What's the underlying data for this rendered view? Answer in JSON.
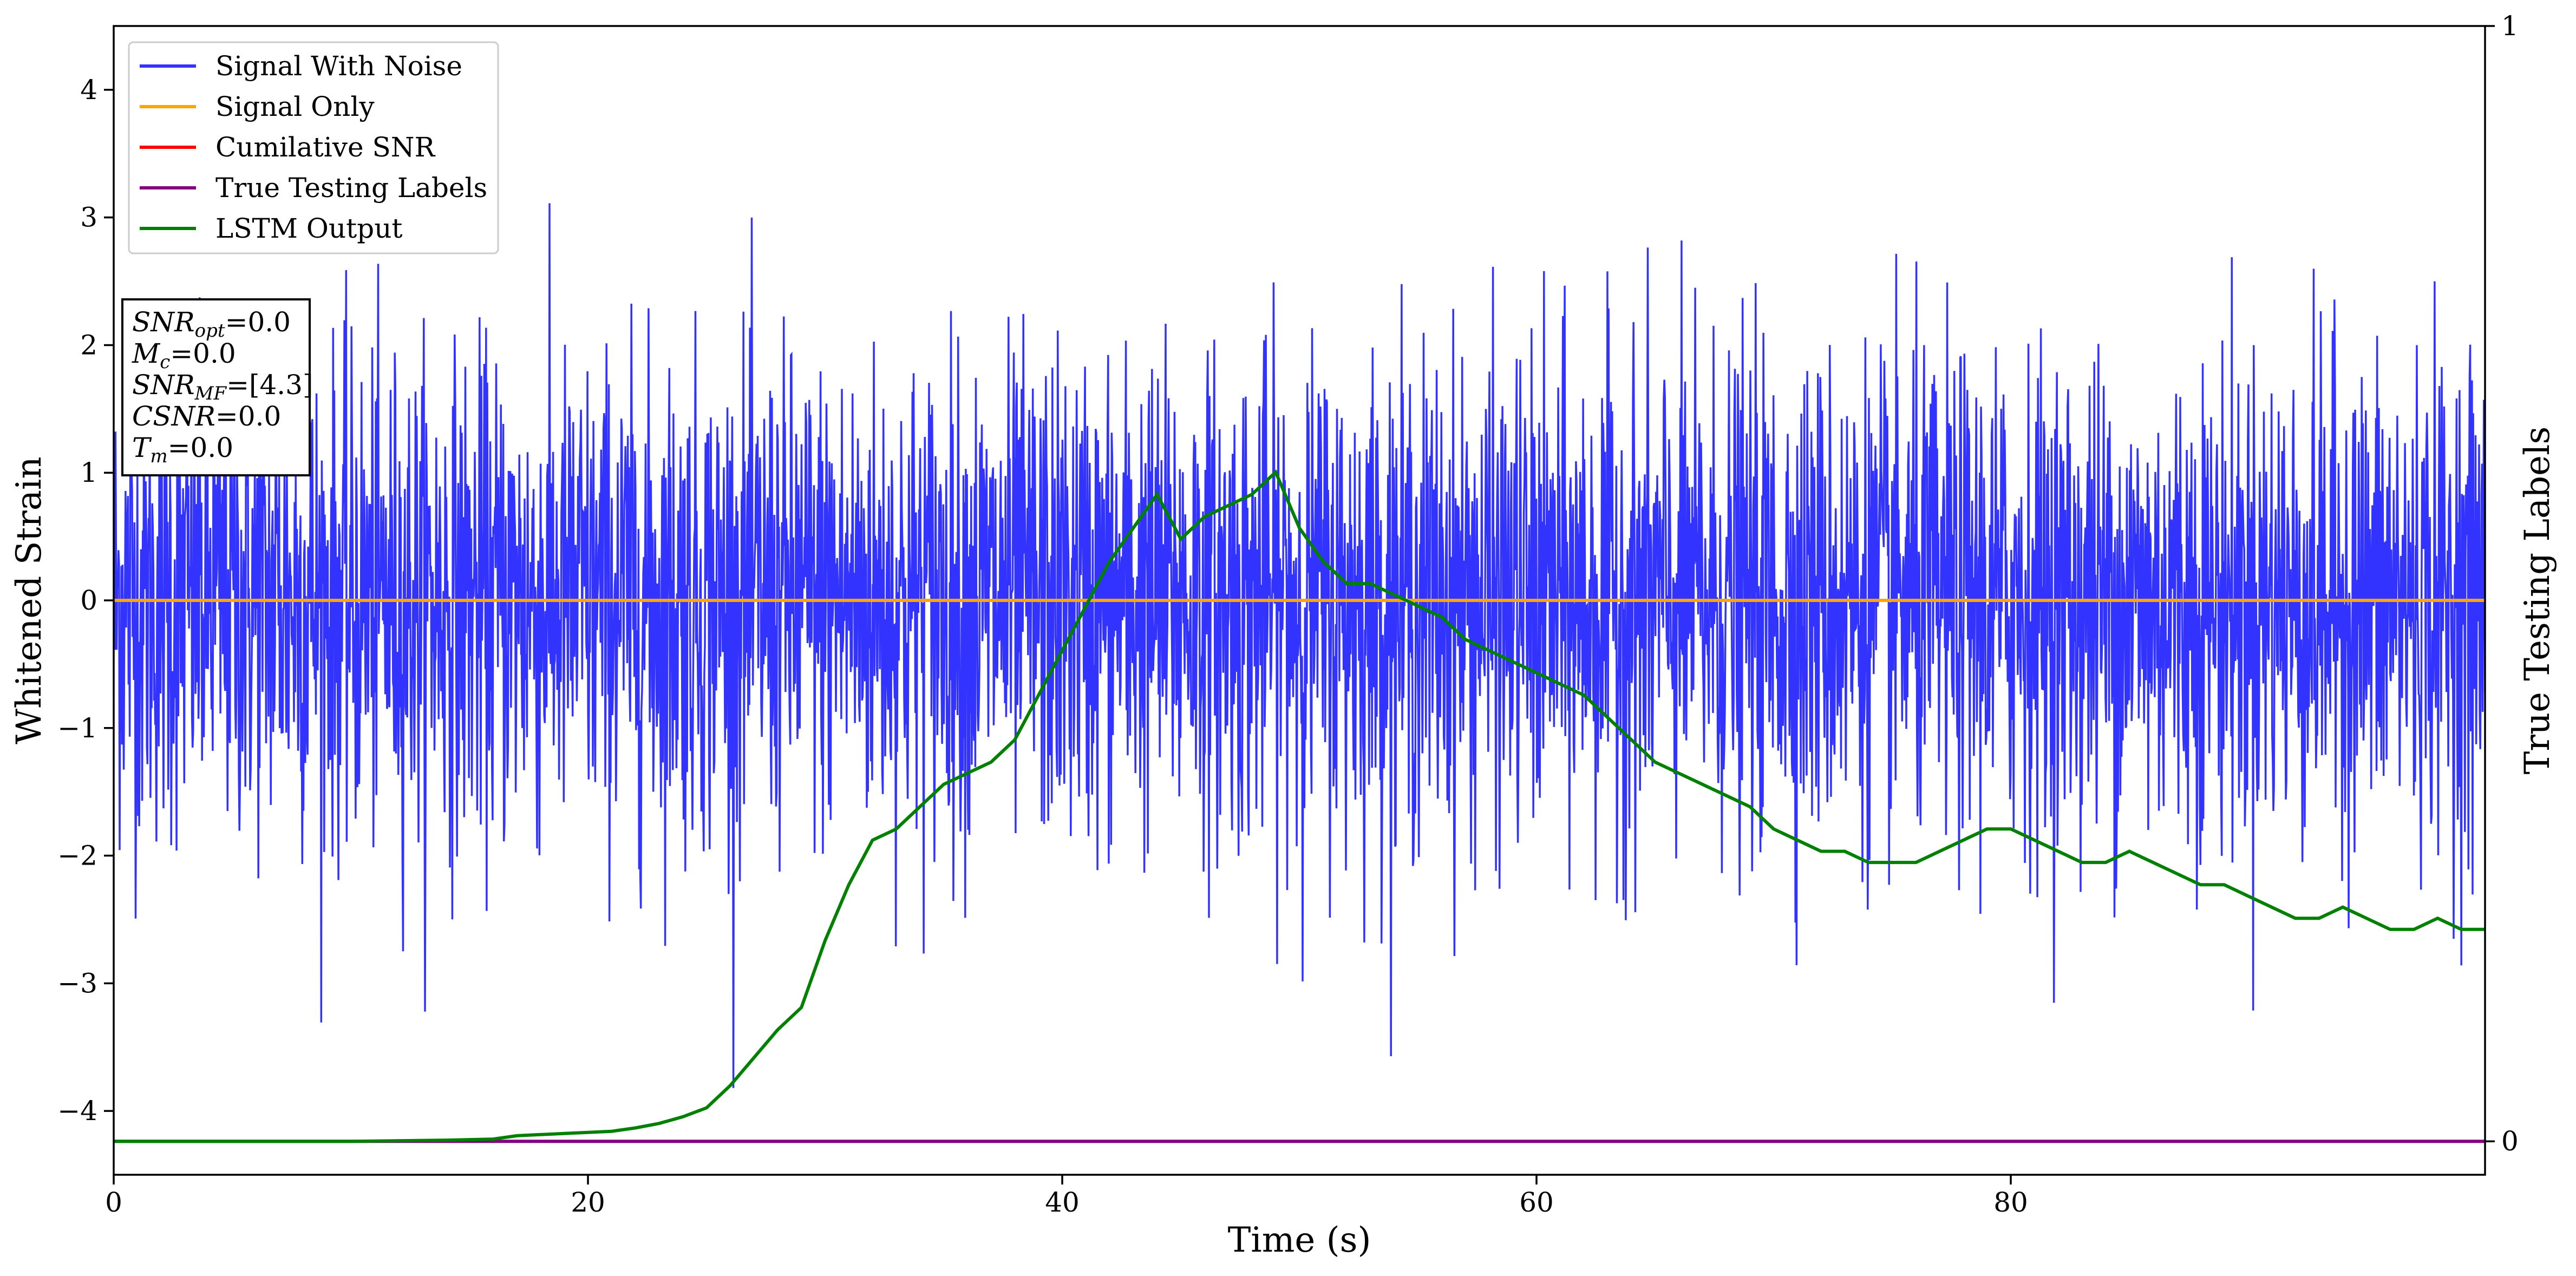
{
  "chart_data": {
    "type": "line",
    "xlabel": "Time (s)",
    "ylabel": "Whitened Strain",
    "y2label": "True Testing Labels",
    "xlim": [
      0,
      100
    ],
    "ylim": [
      -4.5,
      4.5
    ],
    "y2lim": [
      -0.03,
      1.0
    ],
    "xticks": [
      0,
      20,
      40,
      60,
      80
    ],
    "yticks": [
      -4,
      -3,
      -2,
      -1,
      0,
      1,
      2,
      3,
      4
    ],
    "y2ticks": [
      0,
      1
    ],
    "grid": false,
    "legend": {
      "location": "upper-left",
      "entries": [
        {
          "label": "Signal With Noise",
          "color": "#3333ff"
        },
        {
          "label": "Signal Only",
          "color": "#ffa500"
        },
        {
          "label": "Cumilative SNR",
          "color": "#ff0000"
        },
        {
          "label": "True Testing Labels",
          "color": "#800080"
        },
        {
          "label": "LSTM Output",
          "color": "#008000"
        }
      ]
    },
    "annotation": {
      "location": "upper-left",
      "lines": [
        {
          "base": "SNR",
          "sub": "opt",
          "rest": "=0.0"
        },
        {
          "base": "M",
          "sub": "c",
          "rest": "=0.0"
        },
        {
          "base": "SNR",
          "sub": "MF",
          "rest": "=[4.3]"
        },
        {
          "base": "CSNR",
          "sub": "",
          "rest": "=0.0"
        },
        {
          "base": "T",
          "sub": "m",
          "rest": "=0.0"
        }
      ]
    },
    "series": [
      {
        "name": "Signal With Noise",
        "axis": "left",
        "color": "#3333ff",
        "kind": "noise",
        "samples": 4000,
        "std": 0.95,
        "ymin": -4.1,
        "ymax": 4.0
      },
      {
        "name": "Signal Only",
        "axis": "left",
        "color": "#ffa500",
        "x": [
          0,
          100
        ],
        "y": [
          0,
          0
        ]
      },
      {
        "name": "Cumilative SNR",
        "axis": "left",
        "color": "#ff0000",
        "x": [
          0,
          100
        ],
        "y": [
          0,
          0
        ]
      },
      {
        "name": "True Testing Labels",
        "axis": "right",
        "color": "#800080",
        "x": [
          0,
          100
        ],
        "y": [
          0,
          0
        ]
      },
      {
        "name": "LSTM Output",
        "axis": "right",
        "color": "#008000",
        "x": [
          0,
          10,
          14,
          16,
          17,
          18,
          19,
          20,
          21,
          22,
          23,
          24,
          25,
          26,
          27,
          28,
          29,
          30,
          31,
          32,
          33,
          34,
          35,
          36,
          37,
          38,
          39,
          40,
          41,
          42,
          43,
          44,
          45,
          46,
          47,
          48,
          49,
          50,
          51,
          52,
          53,
          54,
          55,
          56,
          57,
          58,
          59,
          60,
          61,
          62,
          63,
          64,
          65,
          66,
          67,
          68,
          69,
          70,
          71,
          72,
          73,
          74,
          75,
          76,
          77,
          78,
          79,
          80,
          81,
          82,
          83,
          84,
          85,
          86,
          87,
          88,
          89,
          90,
          91,
          92,
          93,
          94,
          95,
          96,
          97,
          98,
          99,
          100
        ],
        "y": [
          0,
          0,
          0.001,
          0.002,
          0.005,
          0.006,
          0.007,
          0.008,
          0.009,
          0.012,
          0.016,
          0.022,
          0.03,
          0.05,
          0.075,
          0.1,
          0.12,
          0.18,
          0.23,
          0.27,
          0.28,
          0.3,
          0.32,
          0.33,
          0.34,
          0.36,
          0.4,
          0.44,
          0.48,
          0.52,
          0.55,
          0.58,
          0.54,
          0.56,
          0.57,
          0.58,
          0.6,
          0.55,
          0.52,
          0.5,
          0.5,
          0.49,
          0.48,
          0.47,
          0.45,
          0.44,
          0.43,
          0.42,
          0.41,
          0.4,
          0.38,
          0.36,
          0.34,
          0.33,
          0.32,
          0.31,
          0.3,
          0.28,
          0.27,
          0.26,
          0.26,
          0.25,
          0.25,
          0.25,
          0.26,
          0.27,
          0.28,
          0.28,
          0.27,
          0.26,
          0.25,
          0.25,
          0.26,
          0.25,
          0.24,
          0.23,
          0.23,
          0.22,
          0.21,
          0.2,
          0.2,
          0.21,
          0.2,
          0.19,
          0.19,
          0.2,
          0.19,
          0.19
        ]
      }
    ]
  }
}
